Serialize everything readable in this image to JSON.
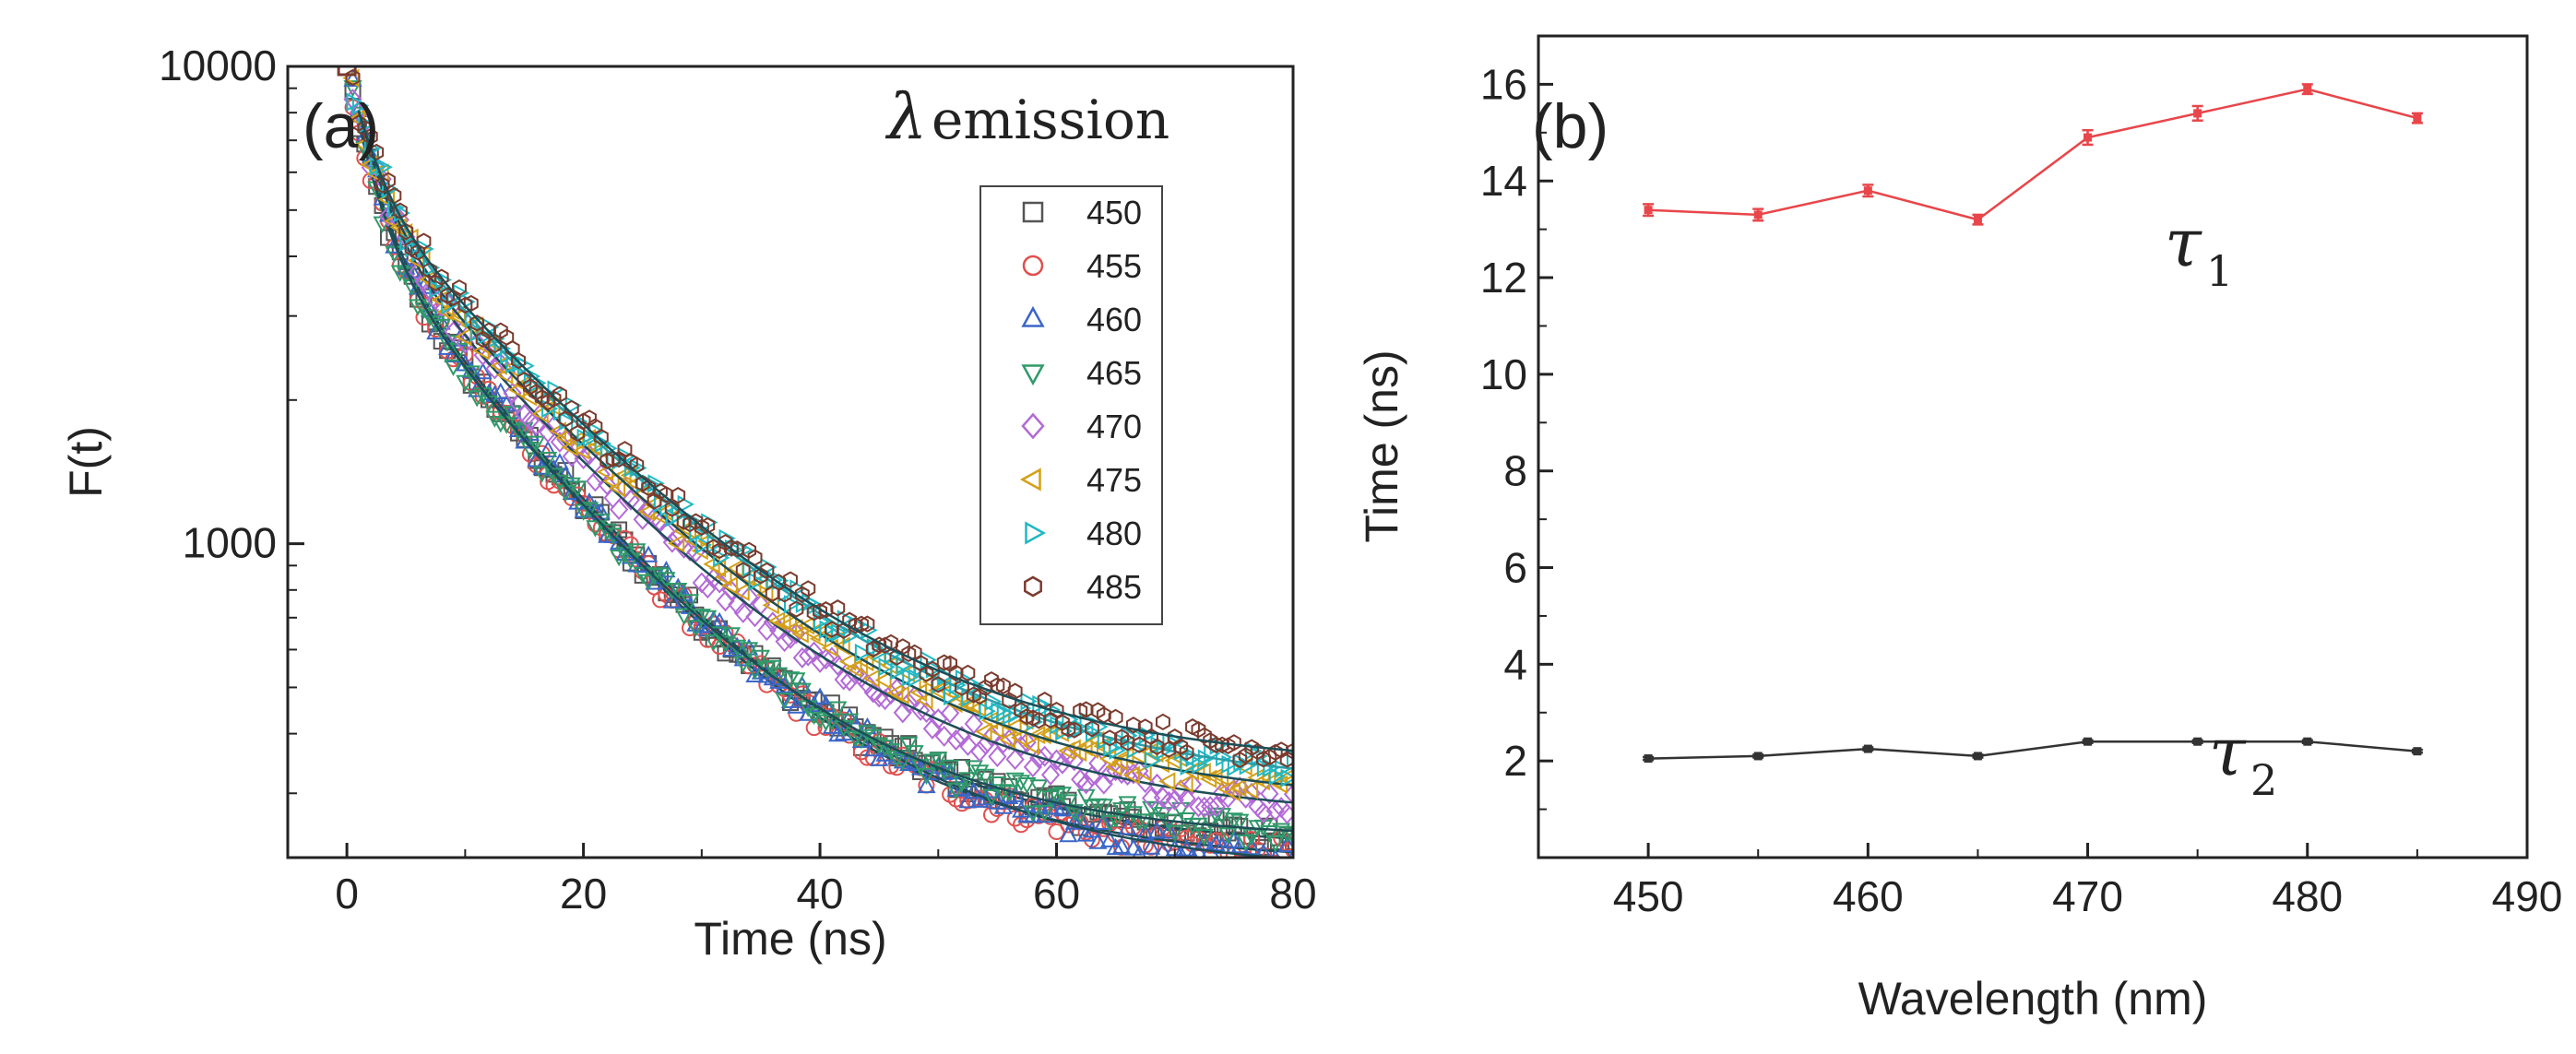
{
  "chart_data": [
    {
      "type": "scatter",
      "panel_label": "(a)",
      "xlabel": "Time (ns)",
      "ylabel": "F(t)",
      "xlim": [
        -5,
        80
      ],
      "ylim": [
        220,
        10000
      ],
      "yscale": "log",
      "xticks": [
        0,
        20,
        40,
        60,
        80
      ],
      "yticks": [
        1000,
        10000
      ],
      "legend_title": "λ emission",
      "legend_title_symbol": "λ",
      "legend_title_word": "emission",
      "legend_position": "upper-right",
      "series": [
        {
          "name": "450",
          "marker": "square",
          "color": "#555555",
          "peak": 10000,
          "tau1": 13.4,
          "tau2": 2.05,
          "fast_fraction": 0.55,
          "background": 230
        },
        {
          "name": "455",
          "marker": "circle",
          "color": "#e0504f",
          "peak": 10000,
          "tau1": 13.3,
          "tau2": 2.1,
          "fast_fraction": 0.55,
          "background": 215
        },
        {
          "name": "460",
          "marker": "triangle-up",
          "color": "#3a66c8",
          "peak": 10000,
          "tau1": 13.8,
          "tau2": 2.25,
          "fast_fraction": 0.55,
          "background": 205
        },
        {
          "name": "465",
          "marker": "triangle-down",
          "color": "#2f9a6a",
          "peak": 10000,
          "tau1": 13.2,
          "tau2": 2.1,
          "fast_fraction": 0.55,
          "background": 240
        },
        {
          "name": "470",
          "marker": "diamond",
          "color": "#b36ad6",
          "peak": 10000,
          "tau1": 14.9,
          "tau2": 2.4,
          "fast_fraction": 0.52,
          "background": 265
        },
        {
          "name": "475",
          "marker": "triangle-left",
          "color": "#d4a017",
          "peak": 10000,
          "tau1": 15.4,
          "tau2": 2.4,
          "fast_fraction": 0.5,
          "background": 285
        },
        {
          "name": "480",
          "marker": "triangle-right",
          "color": "#21b8c4",
          "peak": 10000,
          "tau1": 15.9,
          "tau2": 2.4,
          "fast_fraction": 0.48,
          "background": 305
        },
        {
          "name": "485",
          "marker": "hexagon",
          "color": "#7a3b2e",
          "peak": 10000,
          "tau1": 15.3,
          "tau2": 2.2,
          "fast_fraction": 0.45,
          "background": 340
        }
      ]
    },
    {
      "type": "line",
      "panel_label": "(b)",
      "xlabel": "Wavelength (nm)",
      "ylabel": "Time (ns)",
      "xlim": [
        445,
        490
      ],
      "ylim": [
        0,
        17
      ],
      "xticks": [
        450,
        460,
        470,
        480,
        490
      ],
      "yticks": [
        2,
        4,
        6,
        8,
        10,
        12,
        14,
        16
      ],
      "x": [
        450,
        455,
        460,
        465,
        470,
        475,
        480,
        485
      ],
      "series": [
        {
          "name": "τ1",
          "symbol": "τ",
          "subscript": "1",
          "color": "#e8464a",
          "values": [
            13.4,
            13.3,
            13.8,
            13.2,
            14.9,
            15.4,
            15.9,
            15.3
          ],
          "errors": [
            0.12,
            0.12,
            0.12,
            0.1,
            0.15,
            0.15,
            0.1,
            0.1
          ]
        },
        {
          "name": "τ2",
          "symbol": "τ",
          "subscript": "2",
          "color": "#333333",
          "values": [
            2.05,
            2.1,
            2.25,
            2.1,
            2.4,
            2.4,
            2.4,
            2.2
          ],
          "errors": [
            0.03,
            0.03,
            0.03,
            0.03,
            0.03,
            0.03,
            0.03,
            0.03
          ]
        }
      ]
    }
  ]
}
